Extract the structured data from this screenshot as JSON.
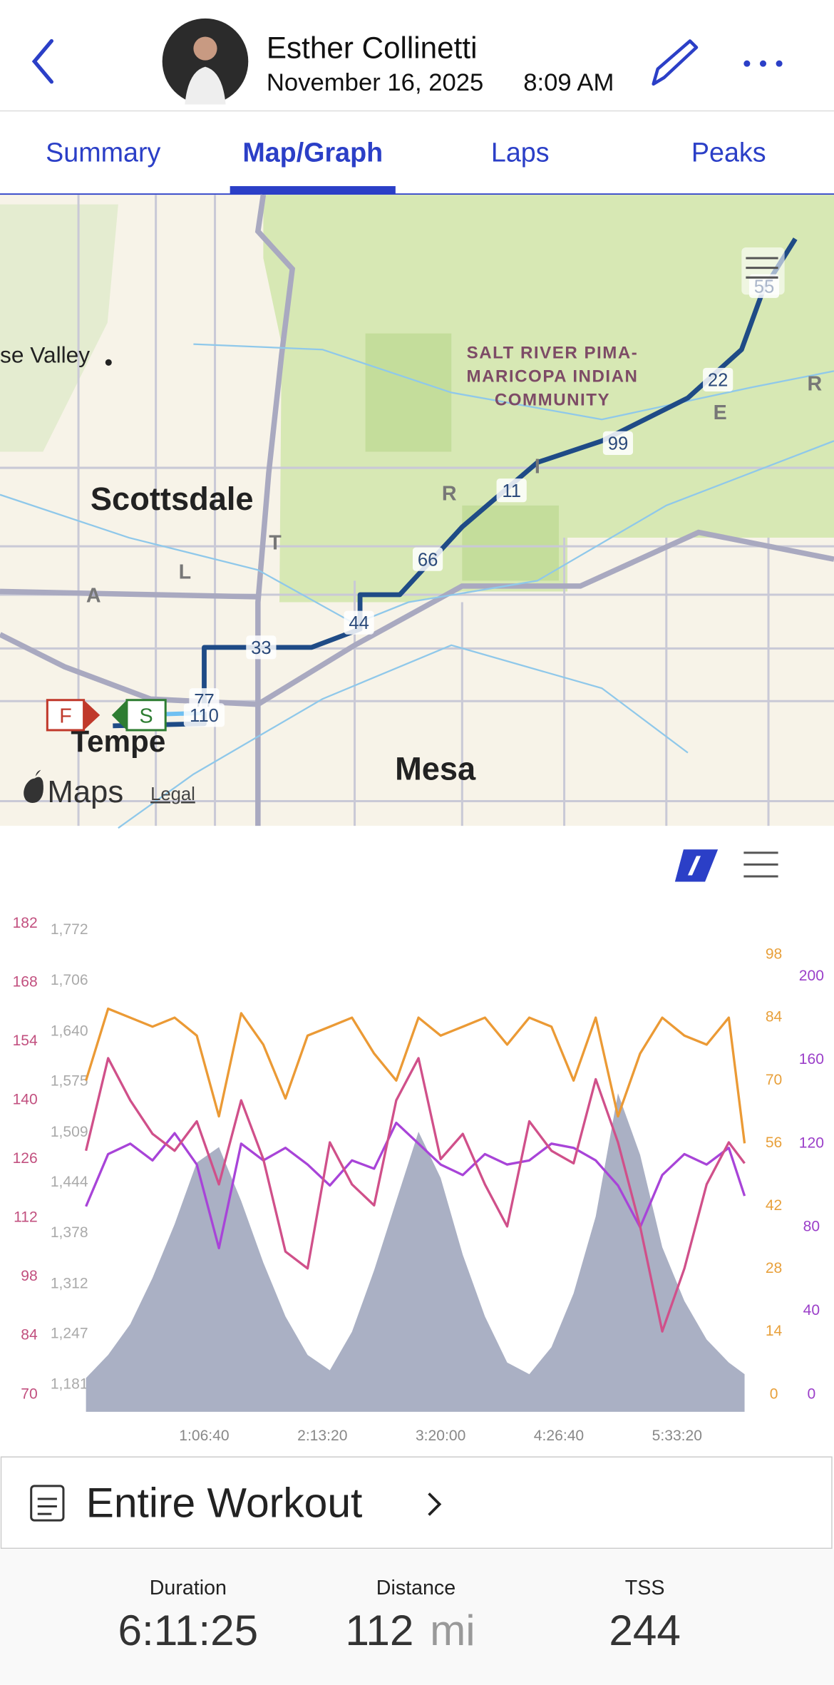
{
  "header": {
    "name": "Esther Collinetti",
    "date": "November 16, 2025",
    "time": "8:09 AM"
  },
  "tabs": [
    "Summary",
    "Map/Graph",
    "Laps",
    "Peaks"
  ],
  "map": {
    "places": [
      "Scottsdale",
      "Tempe",
      "Mesa",
      "se Valley"
    ],
    "community": [
      "SALT RIVER PIMA-",
      "MARICOPA INDIAN",
      "COMMUNITY"
    ],
    "road_letters": [
      "A",
      "L",
      "T",
      "R",
      "I",
      "E",
      "R"
    ],
    "mile_markers": [
      "11",
      "22",
      "33",
      "44",
      "55",
      "66",
      "77",
      "99",
      "110"
    ],
    "start": "S",
    "finish": "F",
    "attribution": "Maps",
    "legal": "Legal"
  },
  "chart_data": {
    "type": "line",
    "x": [
      0,
      750,
      1500,
      2250,
      3000,
      3750,
      4500,
      5250,
      6000,
      6750,
      7500,
      8250,
      9000,
      9750,
      10500,
      11250,
      12000,
      12750,
      13500,
      14250,
      15000,
      15750,
      16500,
      17250,
      18000,
      18750,
      19500,
      20250,
      21000,
      21750,
      22285
    ],
    "xlim": [
      0,
      22285
    ],
    "xticks": [
      {
        "value": 4000,
        "label": "1:06:40"
      },
      {
        "value": 8000,
        "label": "2:13:20"
      },
      {
        "value": 12000,
        "label": "3:20:00"
      },
      {
        "value": 16000,
        "label": "4:26:40"
      },
      {
        "value": 20000,
        "label": "5:33:20"
      }
    ],
    "series": [
      {
        "type": "area",
        "color": "#aab0c4",
        "tick_color": "#aaaaaa",
        "values": [
          1190,
          1220,
          1260,
          1320,
          1390,
          1470,
          1490,
          1420,
          1340,
          1270,
          1220,
          1200,
          1250,
          1330,
          1420,
          1510,
          1450,
          1350,
          1270,
          1210,
          1195,
          1230,
          1300,
          1400,
          1560,
          1480,
          1360,
          1290,
          1240,
          1210,
          1195
        ],
        "ylim": [
          1181,
          1772
        ],
        "yticks": [
          {
            "value": 1181,
            "label": "1,181"
          },
          {
            "value": 1247,
            "label": "1,247"
          },
          {
            "value": 1312,
            "label": "1,312"
          },
          {
            "value": 1378,
            "label": "1,378"
          },
          {
            "value": 1444,
            "label": "1,444"
          },
          {
            "value": 1509,
            "label": "1,509"
          },
          {
            "value": 1575,
            "label": "1,575"
          },
          {
            "value": 1640,
            "label": "1,640"
          },
          {
            "value": 1706,
            "label": "1,706"
          },
          {
            "value": 1772,
            "label": "1,772"
          }
        ]
      },
      {
        "type": "line",
        "color": "#a844d8",
        "tick_color": "#9b3fc9",
        "values": [
          90,
          115,
          120,
          112,
          125,
          110,
          70,
          120,
          112,
          118,
          110,
          100,
          112,
          108,
          130,
          120,
          110,
          105,
          115,
          110,
          112,
          120,
          118,
          112,
          100,
          80,
          105,
          115,
          110,
          118,
          95
        ],
        "ylim": [
          0,
          200
        ],
        "yticks": [
          0,
          40,
          80,
          120,
          160,
          200
        ]
      },
      {
        "type": "line",
        "color": "#d0508a",
        "tick_color": "#c2507f",
        "values": [
          128,
          150,
          140,
          132,
          128,
          135,
          120,
          140,
          126,
          104,
          100,
          130,
          120,
          115,
          140,
          150,
          126,
          132,
          120,
          110,
          135,
          128,
          125,
          145,
          130,
          110,
          85,
          100,
          120,
          130,
          125
        ],
        "ylim": [
          70,
          182
        ],
        "yticks": [
          70,
          84,
          98,
          112,
          126,
          140,
          154,
          168,
          182
        ]
      },
      {
        "type": "line",
        "color": "#eb9a35",
        "tick_color": "#e8a03b",
        "values": [
          70,
          86,
          84,
          82,
          84,
          80,
          62,
          85,
          78,
          66,
          80,
          82,
          84,
          76,
          70,
          84,
          80,
          82,
          84,
          78,
          84,
          82,
          70,
          84,
          62,
          76,
          84,
          80,
          78,
          84,
          56
        ],
        "ylim": [
          0,
          98
        ],
        "yticks": [
          0,
          14,
          28,
          42,
          56,
          70,
          84,
          98
        ]
      }
    ]
  },
  "workout": {
    "title": "Entire Workout",
    "stats": [
      {
        "label": "Duration",
        "value": "6:11:25"
      },
      {
        "label": "Distance",
        "value": "112",
        "unit": "mi"
      },
      {
        "label": "TSS",
        "value": "244"
      }
    ]
  }
}
